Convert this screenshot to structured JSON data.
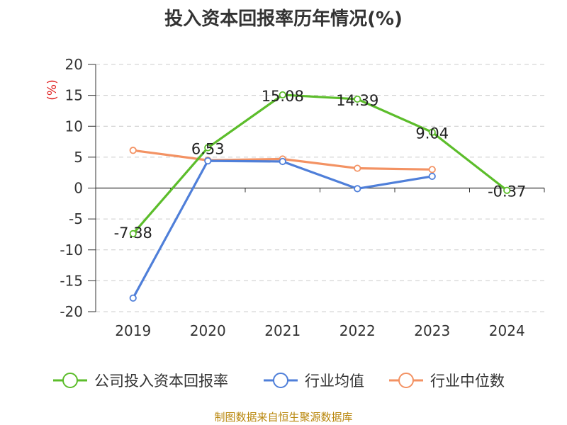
{
  "chart_data": {
    "type": "line",
    "title": "投入资本回报率历年情况(%)",
    "ylabel": "(%)",
    "xlabel": "",
    "categories": [
      "2019",
      "2020",
      "2021",
      "2022",
      "2023",
      "2024"
    ],
    "ylim": [
      -20,
      20
    ],
    "yticks": [
      "20",
      "15",
      "10",
      "5",
      "0",
      "-5",
      "-10",
      "-15",
      "-20"
    ],
    "grid": true,
    "legend_position": "bottom",
    "series": [
      {
        "name": "公司投入资本回报率",
        "color": "#5cbd2b",
        "values": [
          -7.38,
          6.53,
          15.08,
          14.39,
          9.04,
          -0.37
        ],
        "labels": [
          "-7.38",
          "6.53",
          "15.08",
          "14.39",
          "9.04",
          "-0.37"
        ]
      },
      {
        "name": "行业均值",
        "color": "#4f7fd9",
        "values": [
          -17.8,
          4.4,
          4.3,
          -0.1,
          1.9,
          null
        ]
      },
      {
        "name": "行业中位数",
        "color": "#f39263",
        "values": [
          6.1,
          4.5,
          4.7,
          3.2,
          3.0,
          null
        ]
      }
    ]
  },
  "source_text": "制图数据来自恒生聚源数据库"
}
